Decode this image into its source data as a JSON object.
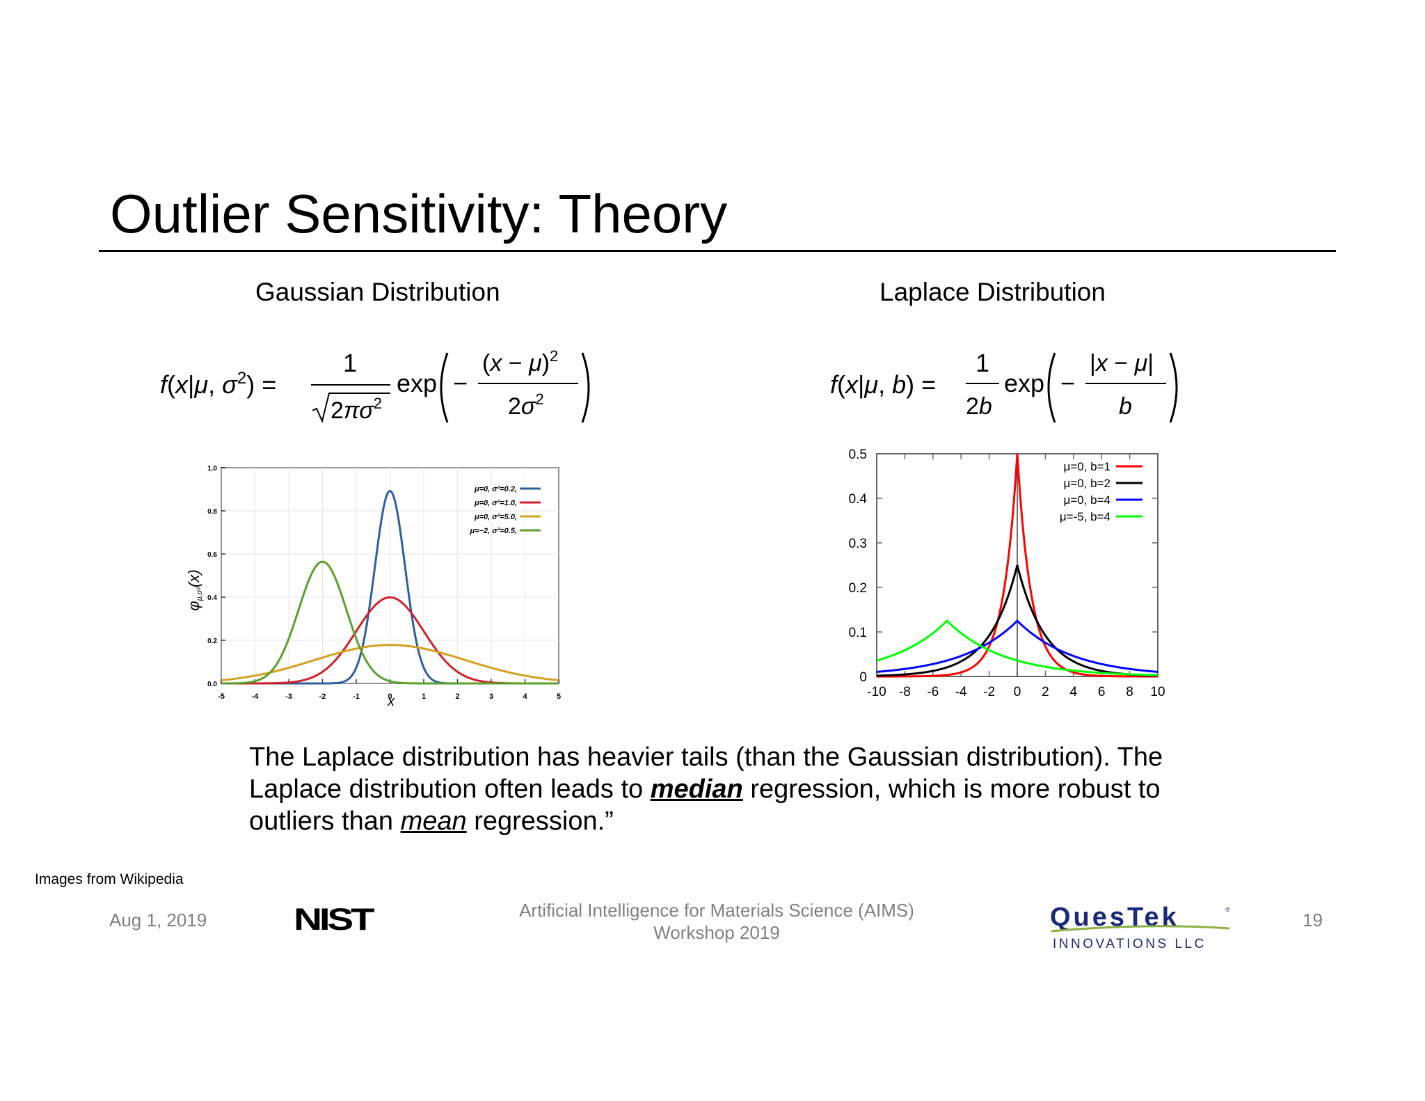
{
  "slide": {
    "title": "Outlier Sensitivity: Theory"
  },
  "gaussian": {
    "heading": "Gaussian Distribution",
    "y_label": "φ",
    "y_label_sub": "μ,σ²",
    "y_label_arg": "(x)",
    "x_label": "x"
  },
  "laplace": {
    "heading": "Laplace Distribution"
  },
  "body": {
    "part1": "The Laplace distribution has heavier tails (than the Gaussian distribution). The Laplace distribution often leads to ",
    "emph1": "median",
    "part2": " regression, which is more robust to outliers than ",
    "emph2": "mean",
    "part3": " regression.”"
  },
  "footer": {
    "credit": "Images from Wikipedia",
    "date": "Aug 1, 2019",
    "nist_logo": "NIST",
    "center_line1": "Artificial Intelligence for Materials Science (AIMS)",
    "center_line2": "Workshop 2019",
    "questek_logo": "QuesTek",
    "questek_sub": "INNOVATIONS LLC",
    "page_number": "19"
  },
  "colors": {
    "blue": "#2c5f9e",
    "red": "#d0202a",
    "orange": "#d4a020",
    "green": "#5aa02c",
    "laplace_red": "#ff0000",
    "laplace_black": "#000000",
    "laplace_blue": "#0000ff",
    "laplace_green": "#00ff00",
    "questek_blue": "#1a2a7a",
    "questek_green": "#8ab040",
    "footer_gray": "#808080"
  },
  "chart_data": [
    {
      "type": "line",
      "xlim": [
        -5,
        5
      ],
      "ylim": [
        0,
        1.0
      ],
      "x_ticks": [
        "-5",
        "-4",
        "-3",
        "-2",
        "-1",
        "0",
        "1",
        "2",
        "3",
        "4",
        "5"
      ],
      "y_ticks": [
        "0.0",
        "0.2",
        "0.4",
        "0.6",
        "0.8",
        "1.0"
      ],
      "grid": true,
      "legend_position": "top-right",
      "series": [
        {
          "name": "μ=0,  σ²=0.2,",
          "mu": 0,
          "sigma2": 0.2,
          "color": "#2c5f9e"
        },
        {
          "name": "μ=0,  σ²=1.0,",
          "mu": 0,
          "sigma2": 1.0,
          "color": "#d0202a"
        },
        {
          "name": "μ=0,  σ²=5.0,",
          "mu": 0,
          "sigma2": 5.0,
          "color": "#d4a020"
        },
        {
          "name": "μ=−2, σ²=0.5,",
          "mu": -2,
          "sigma2": 0.5,
          "color": "#5aa02c"
        }
      ]
    },
    {
      "type": "line",
      "xlim": [
        -10,
        10
      ],
      "ylim": [
        0,
        0.5
      ],
      "x_ticks": [
        "-10",
        "-8",
        "-6",
        "-4",
        "-2",
        "0",
        "2",
        "4",
        "6",
        "8",
        "10"
      ],
      "y_ticks": [
        "0",
        "0.1",
        "0.2",
        "0.3",
        "0.4",
        "0.5"
      ],
      "grid": false,
      "legend_position": "top-right",
      "series": [
        {
          "name": "μ=0, b=1",
          "mu": 0,
          "b": 1,
          "color": "#ff0000"
        },
        {
          "name": "μ=0, b=2",
          "mu": 0,
          "b": 2,
          "color": "#000000"
        },
        {
          "name": "μ=0, b=4",
          "mu": 0,
          "b": 4,
          "color": "#0000ff"
        },
        {
          "name": "μ=-5, b=4",
          "mu": -5,
          "b": 4,
          "color": "#00ff00"
        }
      ]
    }
  ]
}
